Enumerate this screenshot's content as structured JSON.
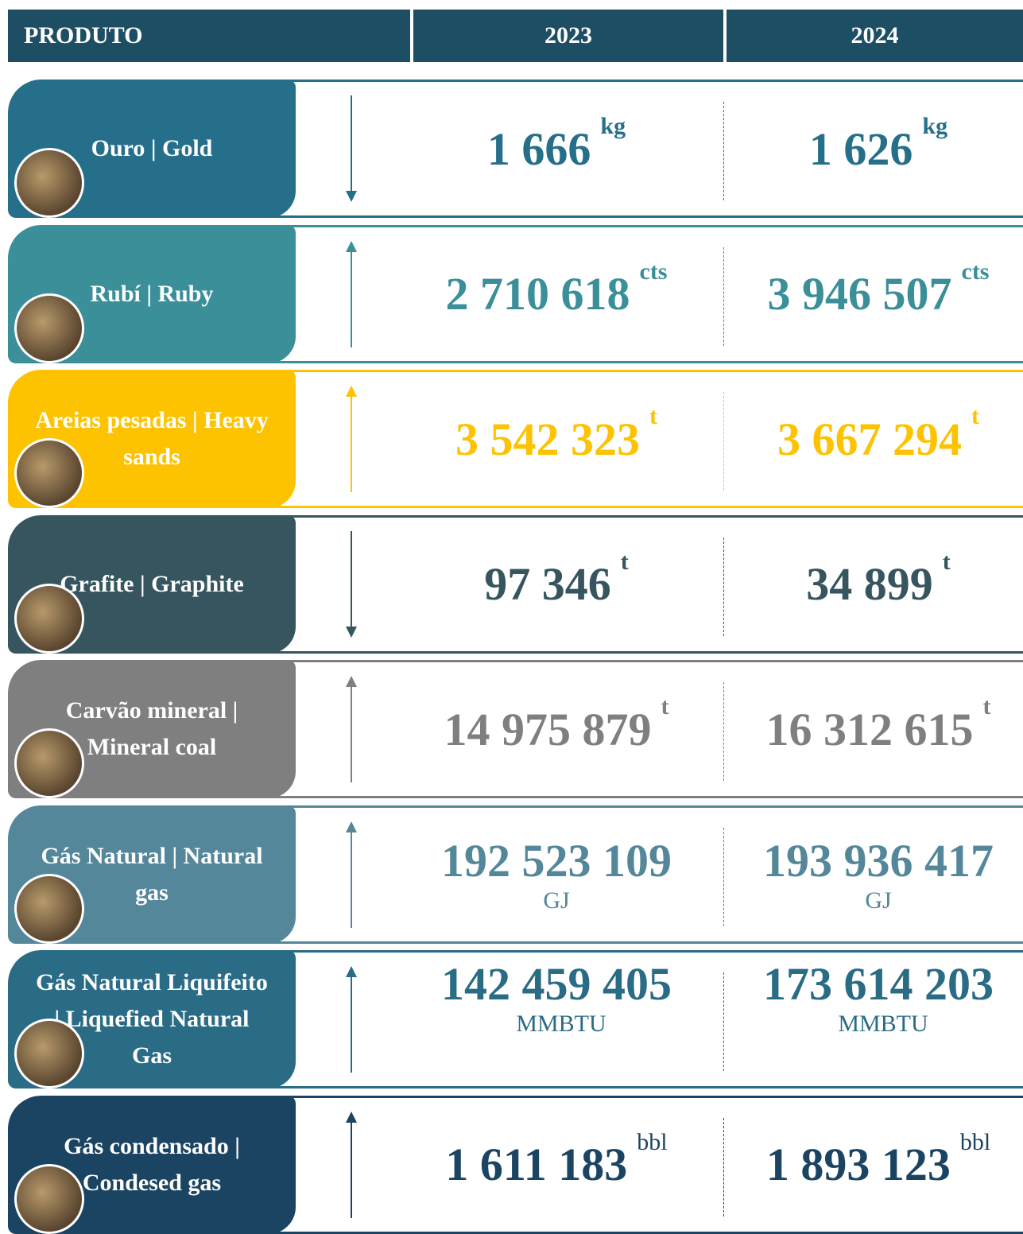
{
  "header": [
    "PRODUTO",
    "2023",
    "2024"
  ],
  "rows": [
    {
      "label": "Ouro | Gold",
      "v2023": "1 666",
      "v2024": "1 626",
      "unit": "kg",
      "trend": "down",
      "color": "#266f8a"
    },
    {
      "label": "Rubí | Ruby",
      "v2023": "2 710 618",
      "v2024": "3 946 507",
      "unit": "cts",
      "trend": "up",
      "color": "#3a8f99"
    },
    {
      "label": "Areias pesadas | Heavy sands",
      "v2023": "3 542 323",
      "v2024": "3 667 294",
      "unit": "t",
      "trend": "up",
      "color": "#fdc300"
    },
    {
      "label": "Grafite | Graphite",
      "v2023": "97 346",
      "v2024": "34 899",
      "unit": "t",
      "trend": "down",
      "color": "#36555e"
    },
    {
      "label": "Carvão mineral | Mineral coal",
      "v2023": "14 975 879",
      "v2024": "16 312 615",
      "unit": "t",
      "trend": "up",
      "color": "#7f7f7f"
    },
    {
      "label": "Gás Natural | Natural gas",
      "v2023": "192 523 109",
      "v2024": "193 936 417",
      "unit": "GJ",
      "trend": "up",
      "color": "#54879a"
    },
    {
      "label": "Gás Natural Liquifeito | Liquefied Natural Gas",
      "v2023": "142 459 405",
      "v2024": "173 614 203",
      "unit": "MMBTU",
      "trend": "up",
      "color": "#2a6b85"
    },
    {
      "label": "Gás condensado | Condesed gas",
      "v2023": "1 611 183",
      "v2024": "1 893 123",
      "unit": "bbl",
      "trend": "up",
      "color": "#1b4463"
    }
  ]
}
